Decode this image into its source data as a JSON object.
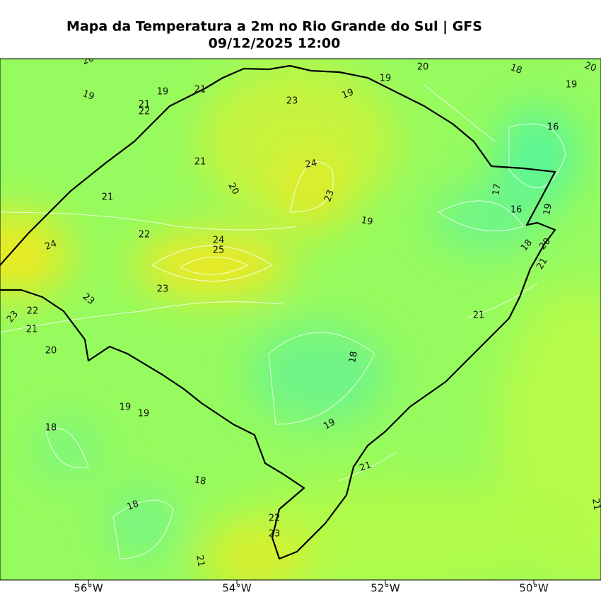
{
  "header": {
    "title": "Mapa da Temperatura a 2m no Rio Grande do Sul | GFS",
    "subtitle": "09/12/2025 12:00"
  },
  "map": {
    "longitude_labels": [
      "56°W",
      "54°W",
      "52°W",
      "50°W"
    ],
    "contour_labels": [
      "20",
      "19",
      "19",
      "21",
      "22",
      "21",
      "23",
      "19",
      "20",
      "18",
      "20",
      "19",
      "19",
      "16",
      "24",
      "21",
      "20",
      "23",
      "21",
      "17",
      "16",
      "19",
      "19",
      "22",
      "24",
      "24",
      "25",
      "18",
      "20",
      "21",
      "23",
      "23",
      "22",
      "23",
      "21",
      "21",
      "20",
      "18",
      "19",
      "19",
      "18",
      "19",
      "21",
      "18",
      "18",
      "22",
      "23",
      "21",
      "21"
    ]
  }
}
